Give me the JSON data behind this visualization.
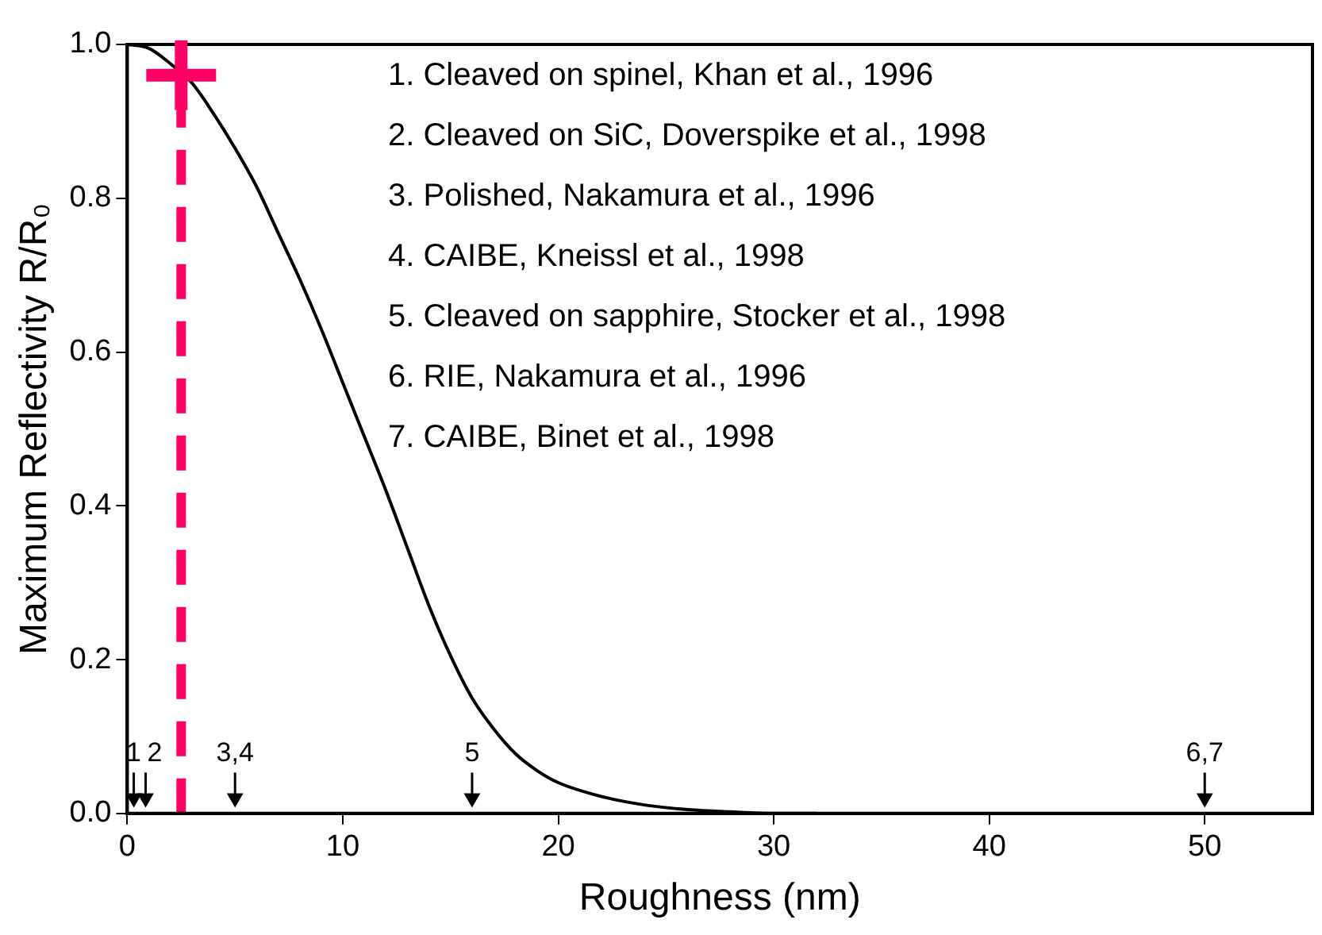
{
  "chart_data": {
    "type": "line",
    "xlabel": "Roughness (nm)",
    "ylabel": "Maximum Reflectivity R/R₀",
    "xlim": [
      0,
      55
    ],
    "xticks": [
      0,
      10,
      20,
      30,
      40,
      50
    ],
    "ylim": [
      0,
      1.0
    ],
    "yticks": [
      {
        "value": 0,
        "label": "0.0"
      },
      0.2,
      0.4,
      0.6,
      0.8,
      {
        "value": 1,
        "label": "1.0"
      }
    ],
    "grid": false,
    "legend": false,
    "series": [
      {
        "color": "#000000",
        "marker": "none",
        "x": [
          0,
          1,
          2,
          3,
          4,
          5,
          6,
          7,
          8,
          9,
          10,
          11,
          12,
          13,
          14,
          15,
          16,
          17,
          18,
          19,
          20,
          22,
          24,
          26,
          28,
          30,
          32
        ],
        "values": [
          1.0,
          0.995,
          0.975,
          0.95,
          0.91,
          0.865,
          0.815,
          0.755,
          0.695,
          0.63,
          0.56,
          0.49,
          0.42,
          0.345,
          0.27,
          0.205,
          0.15,
          0.11,
          0.078,
          0.056,
          0.04,
          0.022,
          0.011,
          0.005,
          0.002,
          0,
          0
        ]
      },
      {
        "type": "scatter",
        "color": "#ff0066",
        "marker": "cross",
        "x": [
          2.5
        ],
        "values": [
          0.96
        ]
      },
      {
        "type": "scatter",
        "color": "#000000",
        "marker": "triangle",
        "x": [
          0.3,
          0.85,
          5,
          16,
          50
        ],
        "values": [
          0.02,
          0.02,
          0.02,
          0.02,
          0.02
        ]
      }
    ],
    "ref_lines": [
      {
        "axis": "x",
        "value": 2.5,
        "color": "#ff0066",
        "line_style": "dashed"
      }
    ],
    "annotations": [
      "1. Cleaved on spinel, Khan et al., 1996",
      "2. Cleaved on SiC, Doverspike et al., 1998",
      "3. Polished, Nakamura et al., 1996",
      "4. CAIBE, Kneissl et al., 1998",
      "5. Cleaved on sapphire, Stocker et al., 1998",
      "6. RIE, Nakamura et al., 1996",
      "7. CAIBE, Binet et al., 1998",
      {
        "text": "1",
        "x": 0.3,
        "y": 0.02
      },
      {
        "text": "2",
        "x": 0.85,
        "y": 0.02
      },
      {
        "text": "3,4",
        "x": 5,
        "y": 0.02
      },
      {
        "text": "5",
        "x": 16,
        "y": 0.02
      },
      {
        "text": "6,7",
        "x": 50,
        "y": 0.02
      }
    ]
  }
}
